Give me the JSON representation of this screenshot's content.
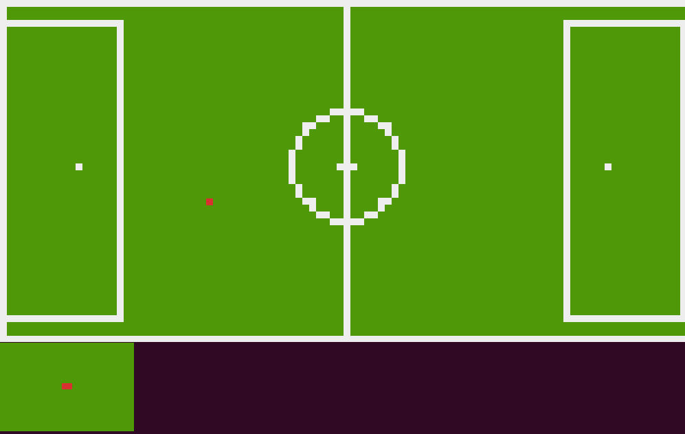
{
  "game": {
    "colors": {
      "grass": "#4f9908",
      "line": "#eeeeee",
      "player": "#d93030",
      "background": "#300a24"
    },
    "pitch": {
      "markings": [
        "boundary",
        "halfway-line",
        "center-circle",
        "center-spot",
        "left-penalty-box",
        "right-penalty-box",
        "left-penalty-spot",
        "right-penalty-spot"
      ]
    },
    "player": {
      "team_color": "#d93030"
    },
    "minimap": {
      "player_color": "#d93030"
    }
  }
}
